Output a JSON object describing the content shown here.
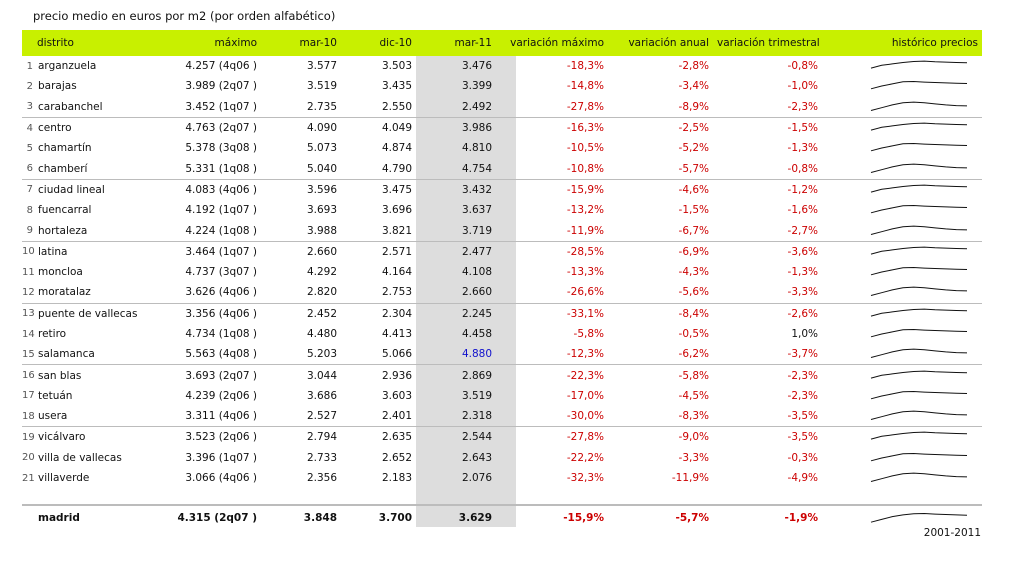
{
  "title": "precio medio en euros por m2 (por orden alfabético)",
  "headers": {
    "district": "distrito",
    "max": "máximo",
    "mar10": "mar-10",
    "dic10": "dic-10",
    "mar11": "mar-11",
    "var_max": "variación máximo",
    "var_anual": "variación anual",
    "var_trim": "variación trimestral",
    "history": "histórico precios"
  },
  "rows": [
    {
      "n": "1",
      "name": "arganzuela",
      "max": "4.257 (4q06 )",
      "mar10": "3.577",
      "dic10": "3.503",
      "mar11": "3.476",
      "vm": "-18,3%",
      "va": "-2,8%",
      "vt": "-0,8%"
    },
    {
      "n": "2",
      "name": "barajas",
      "max": "3.989 (2q07 )",
      "mar10": "3.519",
      "dic10": "3.435",
      "mar11": "3.399",
      "vm": "-14,8%",
      "va": "-3,4%",
      "vt": "-1,0%"
    },
    {
      "n": "3",
      "name": "carabanchel",
      "max": "3.452 (1q07 )",
      "mar10": "2.735",
      "dic10": "2.550",
      "mar11": "2.492",
      "vm": "-27,8%",
      "va": "-8,9%",
      "vt": "-2,3%"
    },
    {
      "n": "4",
      "name": "centro",
      "max": "4.763 (2q07 )",
      "mar10": "4.090",
      "dic10": "4.049",
      "mar11": "3.986",
      "vm": "-16,3%",
      "va": "-2,5%",
      "vt": "-1,5%"
    },
    {
      "n": "5",
      "name": "chamartín",
      "max": "5.378 (3q08 )",
      "mar10": "5.073",
      "dic10": "4.874",
      "mar11": "4.810",
      "vm": "-10,5%",
      "va": "-5,2%",
      "vt": "-1,3%"
    },
    {
      "n": "6",
      "name": "chamberí",
      "max": "5.331 (1q08 )",
      "mar10": "5.040",
      "dic10": "4.790",
      "mar11": "4.754",
      "vm": "-10,8%",
      "va": "-5,7%",
      "vt": "-0,8%"
    },
    {
      "n": "7",
      "name": "ciudad lineal",
      "max": "4.083 (4q06 )",
      "mar10": "3.596",
      "dic10": "3.475",
      "mar11": "3.432",
      "vm": "-15,9%",
      "va": "-4,6%",
      "vt": "-1,2%"
    },
    {
      "n": "8",
      "name": "fuencarral",
      "max": "4.192 (1q07 )",
      "mar10": "3.693",
      "dic10": "3.696",
      "mar11": "3.637",
      "vm": "-13,2%",
      "va": "-1,5%",
      "vt": "-1,6%"
    },
    {
      "n": "9",
      "name": "hortaleza",
      "max": "4.224 (1q08 )",
      "mar10": "3.988",
      "dic10": "3.821",
      "mar11": "3.719",
      "vm": "-11,9%",
      "va": "-6,7%",
      "vt": "-2,7%"
    },
    {
      "n": "10",
      "name": "latina",
      "max": "3.464 (1q07 )",
      "mar10": "2.660",
      "dic10": "2.571",
      "mar11": "2.477",
      "vm": "-28,5%",
      "va": "-6,9%",
      "vt": "-3,6%"
    },
    {
      "n": "11",
      "name": "moncloa",
      "max": "4.737 (3q07 )",
      "mar10": "4.292",
      "dic10": "4.164",
      "mar11": "4.108",
      "vm": "-13,3%",
      "va": "-4,3%",
      "vt": "-1,3%"
    },
    {
      "n": "12",
      "name": "moratalaz",
      "max": "3.626 (4q06 )",
      "mar10": "2.820",
      "dic10": "2.753",
      "mar11": "2.660",
      "vm": "-26,6%",
      "va": "-5,6%",
      "vt": "-3,3%"
    },
    {
      "n": "13",
      "name": "puente de vallecas",
      "max": "3.356 (4q06 )",
      "mar10": "2.452",
      "dic10": "2.304",
      "mar11": "2.245",
      "vm": "-33,1%",
      "va": "-8,4%",
      "vt": "-2,6%"
    },
    {
      "n": "14",
      "name": "retiro",
      "max": "4.734 (1q08 )",
      "mar10": "4.480",
      "dic10": "4.413",
      "mar11": "4.458",
      "vm": "-5,8%",
      "va": "-0,5%",
      "vt": "1,0%"
    },
    {
      "n": "15",
      "name": "salamanca",
      "max": "5.563 (4q08 )",
      "mar10": "5.203",
      "dic10": "5.066",
      "mar11": "4.880",
      "vm": "-12,3%",
      "va": "-6,2%",
      "vt": "-3,7%",
      "hl": true
    },
    {
      "n": "16",
      "name": "san blas",
      "max": "3.693 (2q07 )",
      "mar10": "3.044",
      "dic10": "2.936",
      "mar11": "2.869",
      "vm": "-22,3%",
      "va": "-5,8%",
      "vt": "-2,3%"
    },
    {
      "n": "17",
      "name": "tetuán",
      "max": "4.239 (2q06 )",
      "mar10": "3.686",
      "dic10": "3.603",
      "mar11": "3.519",
      "vm": "-17,0%",
      "va": "-4,5%",
      "vt": "-2,3%"
    },
    {
      "n": "18",
      "name": "usera",
      "max": "3.311 (4q06 )",
      "mar10": "2.527",
      "dic10": "2.401",
      "mar11": "2.318",
      "vm": "-30,0%",
      "va": "-8,3%",
      "vt": "-3,5%"
    },
    {
      "n": "19",
      "name": "vicálvaro",
      "max": "3.523 (2q06 )",
      "mar10": "2.794",
      "dic10": "2.635",
      "mar11": "2.544",
      "vm": "-27,8%",
      "va": "-9,0%",
      "vt": "-3,5%"
    },
    {
      "n": "20",
      "name": "villa de vallecas",
      "max": "3.396 (1q07 )",
      "mar10": "2.733",
      "dic10": "2.652",
      "mar11": "2.643",
      "vm": "-22,2%",
      "va": "-3,3%",
      "vt": "-0,3%"
    },
    {
      "n": "21",
      "name": "villaverde",
      "max": "3.066 (4q06 )",
      "mar10": "2.356",
      "dic10": "2.183",
      "mar11": "2.076",
      "vm": "-32,3%",
      "va": "-11,9%",
      "vt": "-4,9%"
    }
  ],
  "total": {
    "name": "madrid",
    "max": "4.315 (2q07 )",
    "mar10": "3.848",
    "dic10": "3.700",
    "mar11": "3.629",
    "vm": "-15,9%",
    "va": "-5,7%",
    "vt": "-1,9%"
  },
  "footnote": "2001-2011",
  "colors": {
    "header_bg": "#c8f000",
    "highlight_col": "#dddddd",
    "negative": "#cc0000",
    "highlight_value": "#1010cc"
  }
}
